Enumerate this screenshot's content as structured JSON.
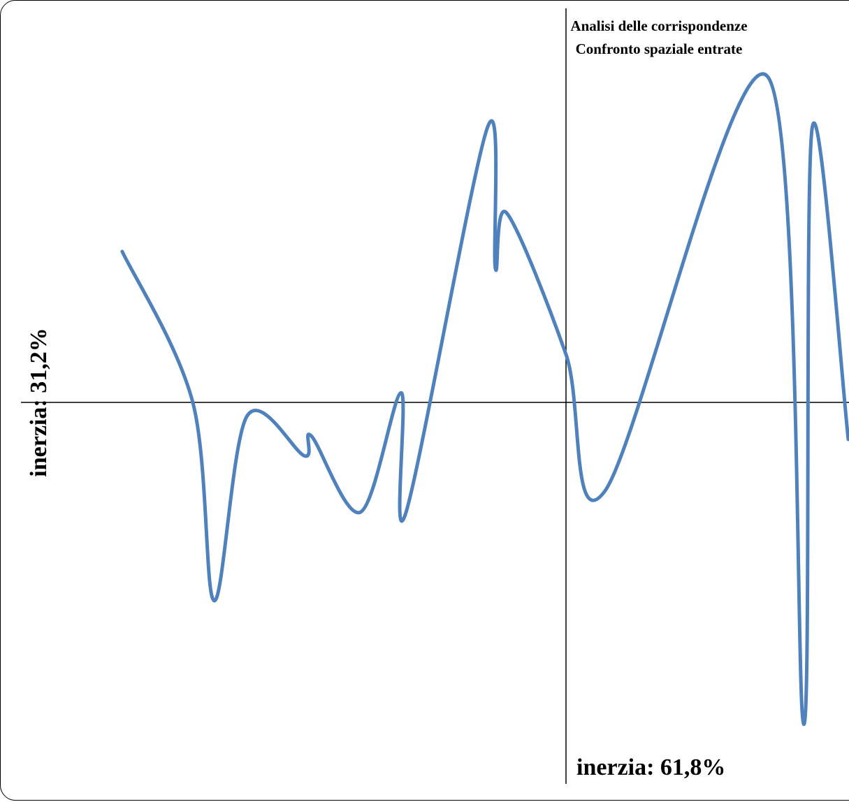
{
  "chart_data": {
    "type": "line",
    "title": [
      "Analisi delle corrispondenze",
      "Confronto spaziale entrate"
    ],
    "xlabel": "inerzia: 61,8%",
    "ylabel": "inerzia: 31,2%",
    "xlim": [
      -1.0,
      0.5
    ],
    "ylim": [
      -0.6,
      0.6
    ],
    "grid": false,
    "legend": "none",
    "series": [
      {
        "color": "#4f81bd",
        "smooth": true,
        "points": [
          [
            -0.786,
            0.22
          ],
          [
            -0.661,
            0.0
          ],
          [
            -0.623,
            -0.289
          ],
          [
            -0.565,
            -0.02
          ],
          [
            -0.463,
            -0.078
          ],
          [
            -0.451,
            -0.049
          ],
          [
            -0.364,
            -0.16
          ],
          [
            -0.292,
            0.014
          ],
          [
            -0.284,
            -0.162
          ],
          [
            -0.139,
            0.401
          ],
          [
            -0.125,
            0.195
          ],
          [
            -0.105,
            0.276
          ],
          [
            0.0,
            0.07
          ],
          [
            0.069,
            -0.129
          ],
          [
            0.357,
            0.475
          ],
          [
            0.421,
            -0.469
          ],
          [
            0.436,
            0.4
          ],
          [
            0.5,
            -0.054
          ]
        ]
      }
    ]
  }
}
